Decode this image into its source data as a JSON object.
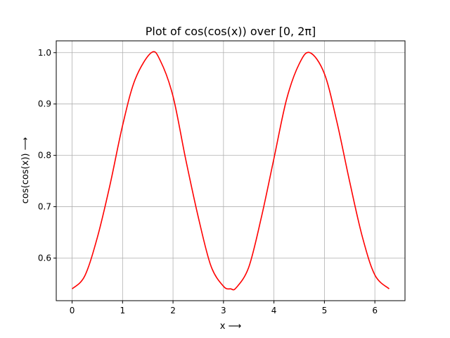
{
  "chart_data": {
    "type": "line",
    "title": "Plot of cos(cos(x)) over [0, 2π]",
    "xlabel": "x ⟶",
    "ylabel": "cos(cos(x)) ⟶",
    "xlim": [
      -0.314,
      6.597
    ],
    "ylim": [
      0.517,
      1.023
    ],
    "xticks": [
      0,
      1,
      2,
      3,
      4,
      5,
      6
    ],
    "yticks": [
      0.6,
      0.7,
      0.8,
      0.9,
      1.0
    ],
    "xtick_labels": [
      "0",
      "1",
      "2",
      "3",
      "4",
      "5",
      "6"
    ],
    "ytick_labels": [
      "0.6",
      "0.7",
      "0.8",
      "0.9",
      "1.0"
    ],
    "grid": true,
    "series": [
      {
        "color": "#ff0000",
        "x": [
          0,
          0.25,
          0.5,
          0.75,
          1.0,
          1.25,
          1.5708,
          1.75,
          2.0,
          2.25,
          2.5,
          2.75,
          3.0,
          3.1416,
          3.25,
          3.5,
          3.75,
          4.0,
          4.25,
          4.5,
          4.7124,
          5.0,
          5.25,
          5.5,
          5.75,
          6.0,
          6.2832
        ],
        "y": [
          0.54,
          0.565,
          0.64,
          0.742,
          0.858,
          0.948,
          1.0,
          0.984,
          0.915,
          0.793,
          0.68,
          0.585,
          0.545,
          0.54,
          0.542,
          0.582,
          0.679,
          0.794,
          0.909,
          0.978,
          1.0,
          0.959,
          0.864,
          0.749,
          0.642,
          0.567,
          0.54
        ]
      }
    ]
  }
}
